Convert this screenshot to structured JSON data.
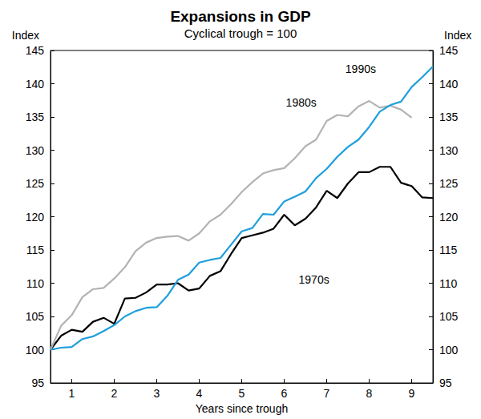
{
  "chart_data": {
    "type": "line",
    "title": "Expansions in GDP",
    "subtitle": "Cyclical trough = 100",
    "x_label": "Years since trough",
    "y_label": "Index",
    "xlim": [
      0,
      9
    ],
    "xticks": [
      {
        "value": 0.5,
        "label": "1"
      },
      {
        "value": 1.5,
        "label": "2"
      },
      {
        "value": 2.5,
        "label": "3"
      },
      {
        "value": 3.5,
        "label": "4"
      },
      {
        "value": 4.5,
        "label": "5"
      },
      {
        "value": 5.5,
        "label": "6"
      },
      {
        "value": 6.5,
        "label": "7"
      },
      {
        "value": 7.5,
        "label": "8"
      },
      {
        "value": 8.5,
        "label": "9"
      }
    ],
    "ylim": [
      95,
      145
    ],
    "yticks": [
      95,
      100,
      105,
      110,
      115,
      120,
      125,
      130,
      135,
      140
    ],
    "grid": false,
    "series": [
      {
        "name": "1970s",
        "color": "#000000",
        "x": [
          0,
          0.25,
          0.5,
          0.75,
          1,
          1.25,
          1.5,
          1.75,
          2,
          2.25,
          2.5,
          2.75,
          3,
          3.25,
          3.5,
          3.75,
          4,
          4.25,
          4.5,
          4.75,
          5,
          5.25,
          5.5,
          5.75,
          6,
          6.25,
          6.5,
          6.75,
          7,
          7.25,
          7.5,
          7.75,
          8,
          8.25,
          8.5,
          8.75,
          9
        ],
        "values": [
          100,
          102.1,
          103.0,
          102.7,
          104.2,
          104.8,
          103.9,
          107.7,
          107.8,
          108.6,
          109.8,
          109.8,
          110.0,
          108.9,
          109.2,
          111.1,
          111.8,
          114.4,
          116.8,
          117.2,
          117.6,
          118.2,
          120.3,
          118.7,
          119.7,
          121.4,
          123.9,
          122.8,
          125.0,
          126.7,
          126.7,
          127.5,
          127.5,
          125.1,
          124.6,
          122.9,
          122.8
        ]
      },
      {
        "name": "1980s",
        "color": "#b3b3b3",
        "x": [
          0,
          0.25,
          0.5,
          0.75,
          1,
          1.25,
          1.5,
          1.75,
          2,
          2.25,
          2.5,
          2.75,
          3,
          3.25,
          3.5,
          3.75,
          4,
          4.25,
          4.5,
          4.75,
          5,
          5.25,
          5.5,
          5.75,
          6,
          6.25,
          6.5,
          6.75,
          7,
          7.25,
          7.5,
          7.75,
          8,
          8.25,
          8.5
        ],
        "values": [
          100,
          103.6,
          105.2,
          107.9,
          109.1,
          109.3,
          110.7,
          112.4,
          114.8,
          116.1,
          116.8,
          117.0,
          117.1,
          116.4,
          117.5,
          119.3,
          120.3,
          121.9,
          123.7,
          125.2,
          126.5,
          127.0,
          127.3,
          128.8,
          130.6,
          131.6,
          134.4,
          135.3,
          135.1,
          136.6,
          137.4,
          136.4,
          136.7,
          136.1,
          134.9
        ]
      },
      {
        "name": "1990s",
        "color": "#1e9fdc",
        "x": [
          0,
          0.25,
          0.5,
          0.75,
          1,
          1.25,
          1.5,
          1.75,
          2,
          2.25,
          2.5,
          2.75,
          3,
          3.25,
          3.5,
          3.75,
          4,
          4.25,
          4.5,
          4.75,
          5,
          5.25,
          5.5,
          5.75,
          6,
          6.25,
          6.5,
          6.75,
          7,
          7.25,
          7.5,
          7.75,
          8,
          8.25,
          8.5,
          8.75,
          9
        ],
        "values": [
          100,
          100.3,
          100.4,
          101.6,
          102,
          102.8,
          103.7,
          105,
          105.8,
          106.3,
          106.4,
          108.1,
          110.5,
          111.3,
          113.1,
          113.5,
          113.8,
          115.8,
          117.8,
          118.3,
          120.4,
          120.3,
          122.3,
          123,
          123.8,
          125.8,
          127.2,
          129,
          130.5,
          131.6,
          133.5,
          135.8,
          136.8,
          137.3,
          139.5,
          141,
          142.6
        ]
      }
    ],
    "annotations": [
      {
        "text": "1990s",
        "x": 7.3,
        "y": 142.2
      },
      {
        "text": "1980s",
        "x": 5.9,
        "y": 137.2
      },
      {
        "text": "1970s",
        "x": 6.2,
        "y": 110.5
      }
    ]
  }
}
